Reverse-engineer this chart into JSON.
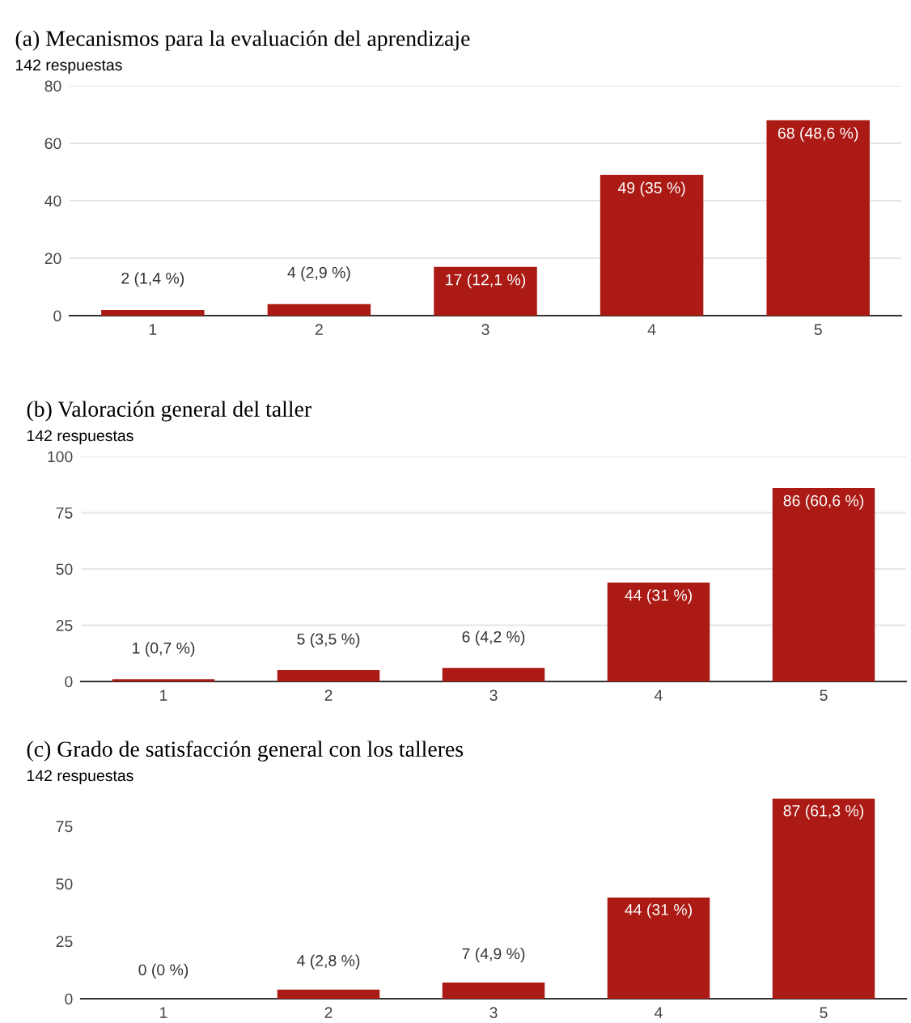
{
  "chart_data": [
    {
      "type": "bar",
      "title": "(a) Mecanismos para la evaluación del aprendizaje",
      "subtitle": "142 respuestas",
      "categories": [
        "1",
        "2",
        "3",
        "4",
        "5"
      ],
      "values": [
        2,
        4,
        17,
        49,
        68
      ],
      "value_labels": [
        "2 (1,4 %)",
        "4 (2,9 %)",
        "17 (12,1 %)",
        "49 (35 %)",
        "68 (48,6 %)"
      ],
      "color": "#ab1a14",
      "ylim": [
        0,
        80
      ],
      "yticks": [
        0,
        20,
        40,
        60,
        80
      ],
      "grid": "y"
    },
    {
      "type": "bar",
      "title": "(b) Valoración general del taller",
      "subtitle": "142 respuestas",
      "categories": [
        "1",
        "2",
        "3",
        "4",
        "5"
      ],
      "values": [
        1,
        5,
        6,
        44,
        86
      ],
      "value_labels": [
        "1 (0,7 %)",
        "5 (3,5 %)",
        "6 (4,2 %)",
        "44 (31 %)",
        "86 (60,6 %)"
      ],
      "color": "#ab1a14",
      "ylim": [
        0,
        100
      ],
      "yticks": [
        0,
        25,
        50,
        75,
        100
      ],
      "grid": "y"
    },
    {
      "type": "bar",
      "title": "(c) Grado de satisfacción general con los talleres",
      "subtitle": "142 respuestas",
      "categories": [
        "1",
        "2",
        "3",
        "4",
        "5"
      ],
      "values": [
        0,
        4,
        7,
        44,
        87
      ],
      "value_labels": [
        "0 (0 %)",
        "4 (2,8 %)",
        "7 (4,9 %)",
        "44 (31 %)",
        "87 (61,3 %)"
      ],
      "color": "#ab1a14",
      "ylim": [
        0,
        88
      ],
      "yticks": [
        0,
        25,
        50,
        75
      ]
    }
  ]
}
